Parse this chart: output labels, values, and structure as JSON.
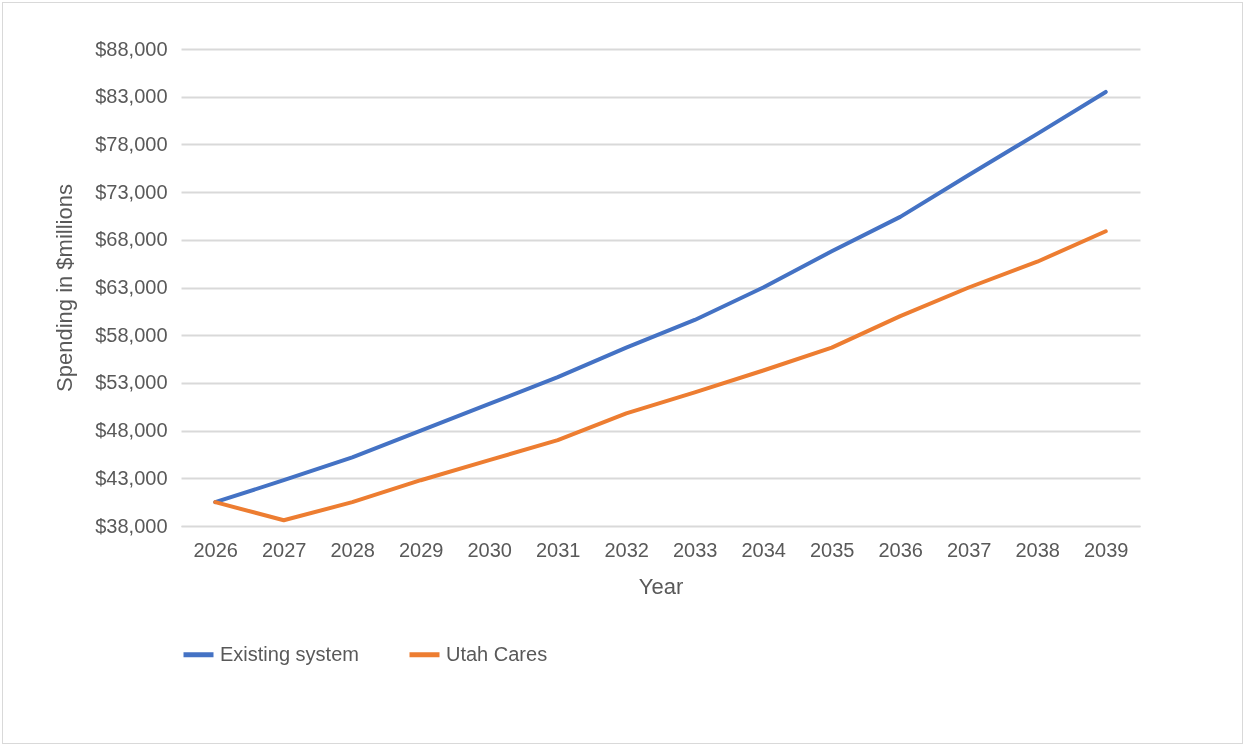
{
  "chart_data": {
    "type": "line",
    "xlabel": "Year",
    "ylabel": "Spending in $millions",
    "categories": [
      "2026",
      "2027",
      "2028",
      "2029",
      "2030",
      "2031",
      "2032",
      "2033",
      "2034",
      "2035",
      "2036",
      "2037",
      "2038",
      "2039"
    ],
    "series": [
      {
        "name": "Existing system",
        "color": "#4472c4",
        "values": [
          40500,
          42800,
          45200,
          48000,
          50800,
          53600,
          56700,
          59600,
          63000,
          66800,
          70400,
          74800,
          79100,
          83500
        ]
      },
      {
        "name": "Utah Cares",
        "color": "#ed7d31",
        "values": [
          40500,
          38600,
          40500,
          42800,
          44900,
          47000,
          49800,
          52000,
          54300,
          56700,
          60000,
          63000,
          65700,
          68900
        ]
      }
    ],
    "ylim": [
      38000,
      88000
    ],
    "yticks": [
      {
        "value": 38000,
        "label": "$38,000"
      },
      {
        "value": 43000,
        "label": "$43,000"
      },
      {
        "value": 48000,
        "label": "$48,000"
      },
      {
        "value": 53000,
        "label": "$53,000"
      },
      {
        "value": 58000,
        "label": "$58,000"
      },
      {
        "value": 63000,
        "label": "$63,000"
      },
      {
        "value": 68000,
        "label": "$68,000"
      },
      {
        "value": 73000,
        "label": "$73,000"
      },
      {
        "value": 78000,
        "label": "$78,000"
      },
      {
        "value": 83000,
        "label": "$83,000"
      },
      {
        "value": 88000,
        "label": "$88,000"
      }
    ],
    "grid": "y",
    "legend": "bottom",
    "marker": "none",
    "line_style": "solid"
  }
}
